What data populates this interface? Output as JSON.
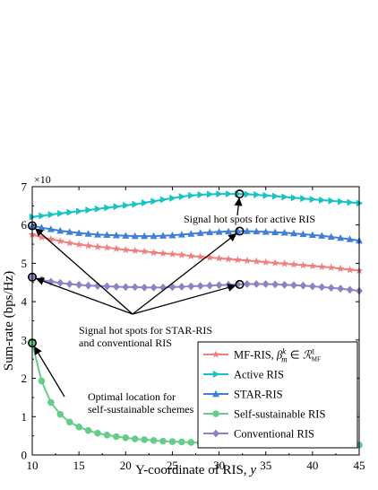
{
  "chart_data": {
    "type": "line",
    "xlabel": "Y-coordinate of RIS, y",
    "xlabel_prefix": "Y-coordinate of RIS, ",
    "xlabel_var": "y",
    "ylabel": "Sum-rate (bps/Hz)",
    "y_multiplier": "×10",
    "xlim": [
      10,
      45
    ],
    "ylim": [
      0,
      7
    ],
    "x_ticks": [
      10,
      15,
      20,
      25,
      30,
      35,
      40,
      45
    ],
    "y_ticks": [
      0,
      1,
      2,
      3,
      4,
      5,
      6,
      7
    ],
    "grid": false,
    "legend_position": "bottom-right",
    "x": [
      10,
      11,
      12,
      13,
      14,
      15,
      16,
      17,
      18,
      19,
      20,
      21,
      22,
      23,
      24,
      25,
      26,
      27,
      28,
      29,
      30,
      31,
      32,
      33,
      34,
      35,
      36,
      37,
      38,
      39,
      40,
      41,
      42,
      43,
      44,
      45
    ],
    "series": [
      {
        "name": "MF-RIS, β_m^k ∈ R_MF^1",
        "legend_prefix": "MF-RIS, ",
        "legend_beta": "β",
        "legend_sup": "k",
        "legend_sub": "m",
        "legend_in": " ∈ ",
        "legend_set": "ℛ",
        "legend_set_sup": "1",
        "legend_set_sub": "MF",
        "color": "#f08080",
        "marker": "star",
        "values": [
          5.75,
          5.68,
          5.63,
          5.58,
          5.53,
          5.49,
          5.46,
          5.43,
          5.41,
          5.38,
          5.35,
          5.33,
          5.31,
          5.28,
          5.26,
          5.24,
          5.22,
          5.19,
          5.17,
          5.15,
          5.13,
          5.11,
          5.09,
          5.07,
          5.05,
          5.03,
          5.01,
          4.99,
          4.97,
          4.95,
          4.93,
          4.91,
          4.89,
          4.86,
          4.83,
          4.81
        ]
      },
      {
        "name": "Active RIS",
        "color": "#17c4c4",
        "marker": "triangle-right",
        "values": [
          6.21,
          6.24,
          6.27,
          6.3,
          6.33,
          6.36,
          6.39,
          6.42,
          6.45,
          6.48,
          6.51,
          6.54,
          6.58,
          6.62,
          6.66,
          6.7,
          6.74,
          6.77,
          6.79,
          6.8,
          6.81,
          6.81,
          6.81,
          6.8,
          6.79,
          6.77,
          6.75,
          6.73,
          6.71,
          6.69,
          6.67,
          6.65,
          6.63,
          6.61,
          6.59,
          6.57
        ]
      },
      {
        "name": "STAR-RIS",
        "color": "#3f7fd6",
        "marker": "triangle-up",
        "values": [
          5.98,
          5.93,
          5.89,
          5.85,
          5.82,
          5.79,
          5.77,
          5.75,
          5.74,
          5.73,
          5.72,
          5.71,
          5.71,
          5.71,
          5.72,
          5.73,
          5.75,
          5.77,
          5.79,
          5.81,
          5.82,
          5.83,
          5.84,
          5.84,
          5.83,
          5.82,
          5.81,
          5.8,
          5.78,
          5.76,
          5.74,
          5.72,
          5.69,
          5.66,
          5.63,
          5.59
        ]
      },
      {
        "name": "Self-sustainable RIS",
        "color": "#66cc8a",
        "marker": "circle",
        "values": [
          2.92,
          1.93,
          1.37,
          1.06,
          0.86,
          0.73,
          0.64,
          0.57,
          0.52,
          0.48,
          0.45,
          0.42,
          0.4,
          0.38,
          0.36,
          0.35,
          0.34,
          0.33,
          0.32,
          0.31,
          0.31,
          0.3,
          0.3,
          0.29,
          0.29,
          0.28,
          0.28,
          0.28,
          0.27,
          0.27,
          0.27,
          0.27,
          0.26,
          0.26,
          0.26,
          0.26
        ]
      },
      {
        "name": "Conventional RIS",
        "color": "#8c82c4",
        "marker": "diamond",
        "values": [
          4.64,
          4.57,
          4.52,
          4.49,
          4.46,
          4.44,
          4.42,
          4.41,
          4.4,
          4.39,
          4.38,
          4.38,
          4.37,
          4.37,
          4.37,
          4.38,
          4.39,
          4.4,
          4.41,
          4.42,
          4.43,
          4.44,
          4.45,
          4.46,
          4.46,
          4.46,
          4.45,
          4.44,
          4.43,
          4.42,
          4.4,
          4.38,
          4.36,
          4.34,
          4.31,
          4.28
        ]
      }
    ],
    "hotspots": [
      {
        "group": "active",
        "x": 32.2,
        "y": 6.81
      },
      {
        "group": "star",
        "x": 10,
        "y": 5.98
      },
      {
        "group": "star",
        "x": 32.2,
        "y": 5.84
      },
      {
        "group": "star",
        "x": 10,
        "y": 4.64
      },
      {
        "group": "star",
        "x": 32.2,
        "y": 4.45
      },
      {
        "group": "self",
        "x": 10,
        "y": 2.92
      }
    ],
    "annotations": [
      {
        "id": "active",
        "lines": [
          "Signal hot spots for active RIS"
        ]
      },
      {
        "id": "star",
        "lines": [
          "Signal hot spots for STAR-RIS",
          "and conventional RIS"
        ]
      },
      {
        "id": "self",
        "lines": [
          "Optimal location for",
          "self-sustainable schemes"
        ]
      }
    ]
  }
}
